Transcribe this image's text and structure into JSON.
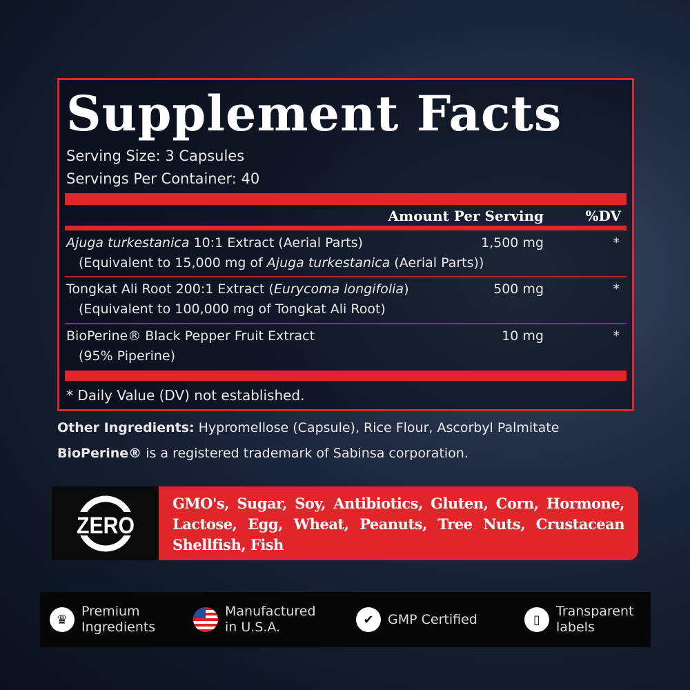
{
  "facts": {
    "title": "Supplement Facts",
    "serving_size": "Serving Size: 3 Capsules",
    "servings_per_container": "Servings Per Container: 40",
    "header_amount": "Amount Per Serving",
    "header_dv": "%DV",
    "rows": [
      {
        "name_italic": "Ajuga turkestanica",
        "name_rest": " 10:1 Extract (Aerial Parts)",
        "sub_pre": "(Equivalent to 15,000 mg of ",
        "sub_italic": "Ajuga turkestanica",
        "sub_post": " (Aerial Parts))",
        "amount": "1,500 mg",
        "dv": "*"
      },
      {
        "name_pre": "Tongkat Ali Root 200:1 Extract (",
        "name_italic": "Eurycoma longifolia",
        "name_post": ")",
        "sub": "(Equivalent to 100,000 mg of Tongkat Ali Root)",
        "amount": "500 mg",
        "dv": "*"
      },
      {
        "name": "BioPerine® Black Pepper Fruit Extract",
        "sub": "(95% Piperine)",
        "amount": "10 mg",
        "dv": "*"
      }
    ],
    "footnote": "* Daily Value (DV) not established."
  },
  "other": {
    "label": "Other Ingredients:",
    "text": " Hypromellose (Capsule), Rice Flour, Ascorbyl Palmitate",
    "tm_bold": "BioPerine®",
    "tm_text": " is a registered trademark of Sabinsa corporation."
  },
  "zero": {
    "badge": "ZERO",
    "list": "GMO's, Sugar, Soy, Antibiotics, Gluten, Corn, Hormone, Lactose, Egg, Wheat, Peanuts, Tree Nuts, Crustacean Shellfish, Fish"
  },
  "features": [
    {
      "icon": "crown-icon",
      "line1": "Premium",
      "line2": "Ingredients"
    },
    {
      "icon": "us-flag-icon",
      "line1": "Manufactured",
      "line2": "in U.S.A."
    },
    {
      "icon": "certified-badge-icon",
      "line1": "GMP Certified",
      "line2": ""
    },
    {
      "icon": "label-icon",
      "line1": "Transparent",
      "line2": "labels"
    }
  ],
  "colors": {
    "accent": "#e0262a",
    "background": "#121a2a"
  }
}
